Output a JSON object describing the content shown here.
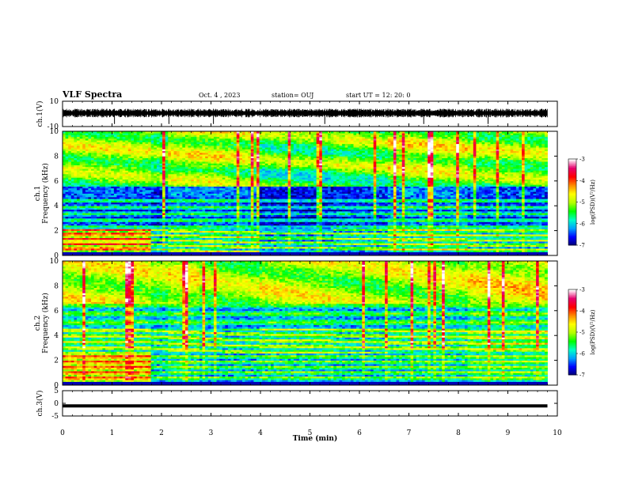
{
  "header": {
    "title": "VLF Spectra",
    "date": "Oct. 4 , 2023",
    "station": "station= OUJ",
    "start": "start  UT =   12: 20: 0"
  },
  "chart_data": [
    {
      "type": "line",
      "panel": "waveform-ch1",
      "ylabel": "ch.1(V)",
      "ylim": [
        -10,
        10
      ],
      "yticks": [
        "10",
        "-10"
      ],
      "xlim": [
        0,
        10
      ],
      "series": [
        {
          "x": [
            0,
            9.8
          ],
          "y": [
            0,
            0
          ]
        }
      ]
    },
    {
      "type": "heatmap",
      "panel": "spectrogram-ch1",
      "ylabel": "ch.1\nFrequency (kHz)",
      "ylim": [
        0,
        10
      ],
      "yticks": [
        "0",
        "2",
        "4",
        "6",
        "8",
        "10"
      ],
      "xlim": [
        0,
        9.8
      ],
      "colorbar": {
        "label": "log(PSD)(V²/Hz)",
        "range": [
          -7,
          -3
        ],
        "ticks": [
          "-3",
          "-4",
          "-5",
          "-6",
          "-7"
        ],
        "colors": [
          "#00006e",
          "#0000ff",
          "#00a0ff",
          "#00ffc8",
          "#00ff00",
          "#b4ff00",
          "#ffff00",
          "#ff8c00",
          "#ff0000",
          "#e6006e",
          "#ffffff"
        ]
      }
    },
    {
      "type": "heatmap",
      "panel": "spectrogram-ch2",
      "ylabel": "ch.2\nFrequency (kHz)",
      "ylim": [
        0,
        10
      ],
      "yticks": [
        "0",
        "2",
        "4",
        "6",
        "8",
        "10"
      ],
      "xlim": [
        0,
        9.8
      ],
      "colorbar": {
        "label": "log(PSD)(V²/Hz)",
        "range": [
          -7,
          -3
        ],
        "ticks": [
          "-3",
          "-4",
          "-5",
          "-6",
          "-7"
        ]
      }
    },
    {
      "type": "line",
      "panel": "waveform-ch3",
      "ylabel": "ch.3(V)",
      "ylim": [
        -5,
        5
      ],
      "yticks": [
        "5",
        "0",
        "-5"
      ],
      "xlim": [
        0,
        10
      ],
      "series": [
        {
          "x": [
            0,
            9.8
          ],
          "y": [
            -1,
            -1
          ]
        }
      ]
    }
  ],
  "xaxis": {
    "label": "Time (min)",
    "ticks": [
      "0",
      "1",
      "2",
      "3",
      "4",
      "5",
      "6",
      "7",
      "8",
      "9",
      "10"
    ],
    "range": [
      0,
      10
    ]
  }
}
